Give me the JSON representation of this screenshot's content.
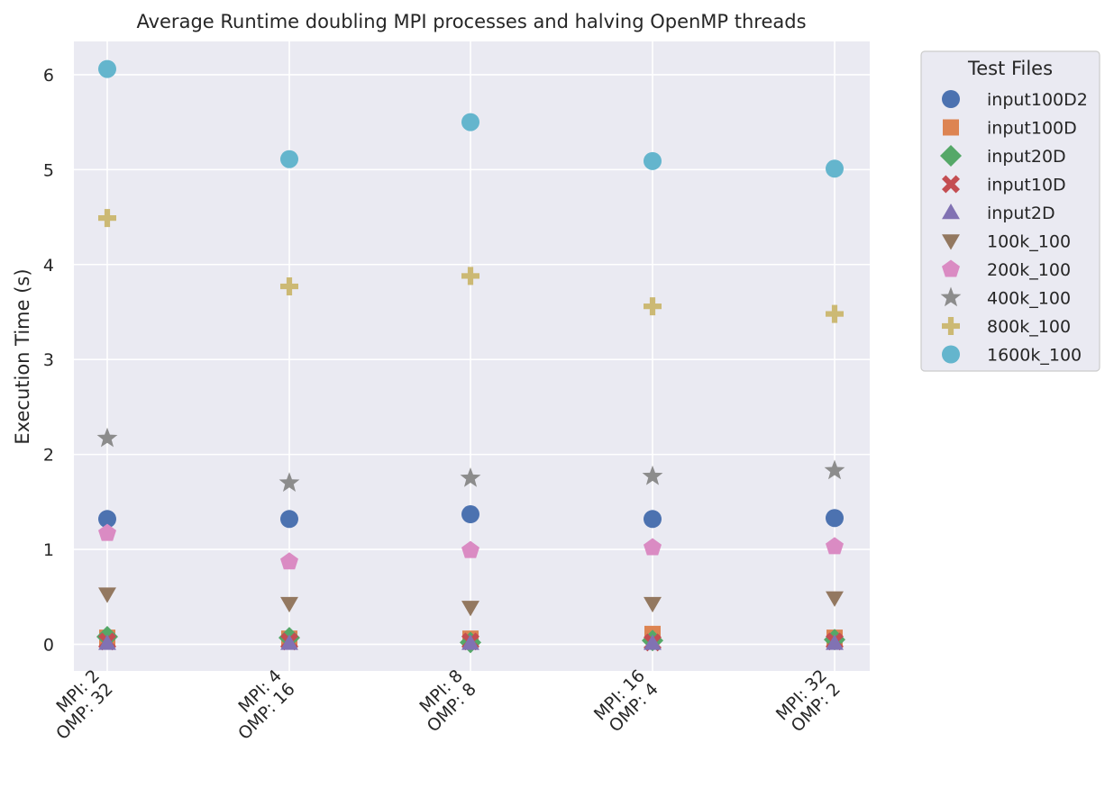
{
  "chart_data": {
    "type": "scatter",
    "title": "Average Runtime doubling MPI processes and halving OpenMP threads",
    "xlabel": "",
    "ylabel": "Execution Time (s)",
    "categories": [
      [
        "MPI: 2",
        "OMP: 32"
      ],
      [
        "MPI: 4",
        "OMP: 16"
      ],
      [
        "MPI: 8",
        "OMP: 8"
      ],
      [
        "MPI: 16",
        "OMP: 4"
      ],
      [
        "MPI: 32",
        "OMP: 2"
      ]
    ],
    "yticks": [
      0,
      1,
      2,
      3,
      4,
      5,
      6
    ],
    "ylim": [
      -0.28,
      6.35
    ],
    "grid": true,
    "legend": {
      "title": "Test Files",
      "position": "outside-right-top"
    },
    "series": [
      {
        "name": "input100D2",
        "marker": "circle",
        "color": "#4c72b0",
        "values": [
          1.32,
          1.32,
          1.37,
          1.32,
          1.33
        ]
      },
      {
        "name": "input100D",
        "marker": "square",
        "color": "#dd8452",
        "values": [
          0.07,
          0.06,
          0.06,
          0.11,
          0.07
        ]
      },
      {
        "name": "input20D",
        "marker": "diamond",
        "color": "#55a868",
        "values": [
          0.08,
          0.07,
          0.02,
          0.04,
          0.05
        ]
      },
      {
        "name": "input10D",
        "marker": "x",
        "color": "#c44e52",
        "values": [
          0.03,
          0.03,
          0.03,
          0.02,
          0.03
        ]
      },
      {
        "name": "input2D",
        "marker": "triangle-up",
        "color": "#8172b3",
        "values": [
          0.01,
          0.01,
          0.01,
          0.01,
          0.01
        ]
      },
      {
        "name": "100k_100",
        "marker": "triangle-down",
        "color": "#937860",
        "values": [
          0.53,
          0.43,
          0.39,
          0.43,
          0.49
        ]
      },
      {
        "name": "200k_100",
        "marker": "pentagon",
        "color": "#da8bc3",
        "values": [
          1.17,
          0.87,
          0.99,
          1.02,
          1.03
        ]
      },
      {
        "name": "400k_100",
        "marker": "star",
        "color": "#8c8c8c",
        "values": [
          2.17,
          1.7,
          1.75,
          1.77,
          1.83
        ]
      },
      {
        "name": "800k_100",
        "marker": "plus",
        "color": "#ccb974",
        "values": [
          4.49,
          3.77,
          3.88,
          3.56,
          3.48
        ]
      },
      {
        "name": "1600k_100",
        "marker": "circle",
        "color": "#64b5cd",
        "values": [
          6.06,
          5.11,
          5.5,
          5.09,
          5.01
        ]
      }
    ]
  }
}
